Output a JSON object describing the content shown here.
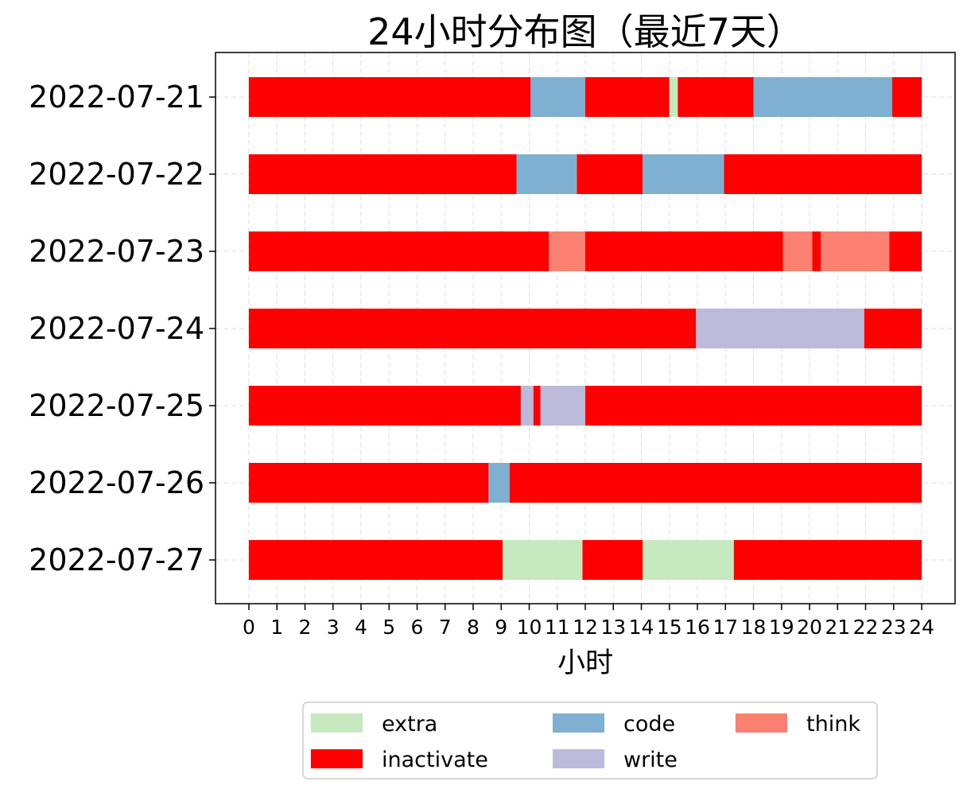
{
  "chart_data": {
    "type": "bar",
    "orientation": "horizontal-stacked-timeline",
    "title": "24小时分布图（最近7天）",
    "xlabel": "小时",
    "ylabel": "",
    "xlim": [
      0,
      24
    ],
    "x_ticks": [
      "0",
      "1",
      "2",
      "3",
      "4",
      "5",
      "6",
      "7",
      "8",
      "9",
      "10",
      "11",
      "12",
      "13",
      "14",
      "15",
      "16",
      "17",
      "18",
      "19",
      "20",
      "21",
      "22",
      "23",
      "24"
    ],
    "grid": true,
    "legend_position": "bottom-center",
    "legend": [
      {
        "label": "extra",
        "color": "#c7e9c0"
      },
      {
        "label": "inactivate",
        "color": "#ff0000"
      },
      {
        "label": "code",
        "color": "#7fb0d2"
      },
      {
        "label": "write",
        "color": "#bcbadb"
      },
      {
        "label": "think",
        "color": "#fa8072"
      }
    ],
    "colors": {
      "extra": "#c7e9c0",
      "inactivate": "#ff0000",
      "code": "#7fb0d2",
      "write": "#bcbadb",
      "think": "#fa8072"
    },
    "rows": [
      {
        "date": "2022-07-21",
        "segments": [
          {
            "cat": "inactivate",
            "start": 0,
            "end": 10.05
          },
          {
            "cat": "code",
            "start": 10.05,
            "end": 12.0
          },
          {
            "cat": "inactivate",
            "start": 12.0,
            "end": 15.0
          },
          {
            "cat": "extra",
            "start": 15.0,
            "end": 15.3
          },
          {
            "cat": "inactivate",
            "start": 15.3,
            "end": 18.0
          },
          {
            "cat": "code",
            "start": 18.0,
            "end": 22.95
          },
          {
            "cat": "inactivate",
            "start": 22.95,
            "end": 24.0
          }
        ]
      },
      {
        "date": "2022-07-22",
        "segments": [
          {
            "cat": "inactivate",
            "start": 0,
            "end": 9.55
          },
          {
            "cat": "code",
            "start": 9.55,
            "end": 11.7
          },
          {
            "cat": "inactivate",
            "start": 11.7,
            "end": 14.05
          },
          {
            "cat": "code",
            "start": 14.05,
            "end": 16.95
          },
          {
            "cat": "inactivate",
            "start": 16.95,
            "end": 24.0
          }
        ]
      },
      {
        "date": "2022-07-23",
        "segments": [
          {
            "cat": "inactivate",
            "start": 0,
            "end": 10.7
          },
          {
            "cat": "think",
            "start": 10.7,
            "end": 12.0
          },
          {
            "cat": "inactivate",
            "start": 12.0,
            "end": 19.05
          },
          {
            "cat": "think",
            "start": 19.05,
            "end": 20.1
          },
          {
            "cat": "inactivate",
            "start": 20.1,
            "end": 20.4
          },
          {
            "cat": "think",
            "start": 20.4,
            "end": 22.85
          },
          {
            "cat": "inactivate",
            "start": 22.85,
            "end": 24.0
          }
        ]
      },
      {
        "date": "2022-07-24",
        "segments": [
          {
            "cat": "inactivate",
            "start": 0,
            "end": 15.95
          },
          {
            "cat": "write",
            "start": 15.95,
            "end": 21.95
          },
          {
            "cat": "inactivate",
            "start": 21.95,
            "end": 24.0
          }
        ]
      },
      {
        "date": "2022-07-25",
        "segments": [
          {
            "cat": "inactivate",
            "start": 0,
            "end": 9.7
          },
          {
            "cat": "write",
            "start": 9.7,
            "end": 10.15
          },
          {
            "cat": "inactivate",
            "start": 10.15,
            "end": 10.4
          },
          {
            "cat": "write",
            "start": 10.4,
            "end": 12.0
          },
          {
            "cat": "inactivate",
            "start": 12.0,
            "end": 24.0
          }
        ]
      },
      {
        "date": "2022-07-26",
        "segments": [
          {
            "cat": "inactivate",
            "start": 0,
            "end": 8.55
          },
          {
            "cat": "code",
            "start": 8.55,
            "end": 9.3
          },
          {
            "cat": "inactivate",
            "start": 9.3,
            "end": 24.0
          }
        ]
      },
      {
        "date": "2022-07-27",
        "segments": [
          {
            "cat": "inactivate",
            "start": 0,
            "end": 9.05
          },
          {
            "cat": "extra",
            "start": 9.05,
            "end": 11.9
          },
          {
            "cat": "inactivate",
            "start": 11.9,
            "end": 14.05
          },
          {
            "cat": "extra",
            "start": 14.05,
            "end": 17.3
          },
          {
            "cat": "inactivate",
            "start": 17.3,
            "end": 24.0
          }
        ]
      }
    ]
  }
}
